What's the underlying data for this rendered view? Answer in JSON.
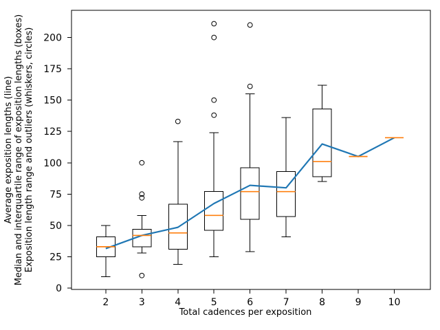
{
  "chart_data": {
    "type": "boxplot-with-line",
    "title": "",
    "xlabel": "Total cadences per exposition",
    "ylabel_lines": [
      "Average exposition lengths (line)",
      "Median and interquartile range of exposition lengths (boxes)",
      "Exposition length range and outliers (whiskers, circles)"
    ],
    "xticks": [
      2,
      3,
      4,
      5,
      6,
      7,
      8,
      9,
      10
    ],
    "yticks": [
      0,
      25,
      50,
      75,
      100,
      125,
      150,
      175,
      200
    ],
    "xlim": [
      1.05,
      11.0
    ],
    "ylim": [
      -1.1,
      221.7
    ],
    "grid": false,
    "legend": "none",
    "boxes": [
      {
        "x": 2,
        "whislo": 9,
        "q1": 25,
        "med": 33,
        "q3": 41,
        "whishi": 50,
        "fliers": []
      },
      {
        "x": 3,
        "whislo": 28,
        "q1": 33,
        "med": 42,
        "q3": 47,
        "whishi": 58,
        "fliers": [
          10,
          72,
          75,
          100
        ]
      },
      {
        "x": 4,
        "whislo": 19,
        "q1": 31,
        "med": 44,
        "q3": 67,
        "whishi": 117,
        "fliers": [
          133
        ]
      },
      {
        "x": 5,
        "whislo": 25,
        "q1": 46,
        "med": 58,
        "q3": 77,
        "whishi": 124,
        "fliers": [
          138,
          150,
          200,
          211
        ]
      },
      {
        "x": 6,
        "whislo": 29,
        "q1": 55,
        "med": 77,
        "q3": 96,
        "whishi": 155,
        "fliers": [
          161,
          210
        ]
      },
      {
        "x": 7,
        "whislo": 41,
        "q1": 57,
        "med": 77,
        "q3": 93,
        "whishi": 136,
        "fliers": []
      },
      {
        "x": 8,
        "whislo": 85,
        "q1": 89,
        "med": 101,
        "q3": 143,
        "whishi": 162,
        "fliers": []
      },
      {
        "x": 9,
        "whislo": 105,
        "q1": 105,
        "med": 105,
        "q3": 105,
        "whishi": 105,
        "fliers": []
      },
      {
        "x": 10,
        "whislo": 120,
        "q1": 120,
        "med": 120,
        "q3": 120,
        "whishi": 120,
        "fliers": []
      }
    ],
    "line_series": {
      "name": "Average exposition lengths",
      "x": [
        2,
        3,
        4,
        5,
        6,
        7,
        8,
        9,
        10
      ],
      "y": [
        31.5,
        42,
        48.5,
        67.5,
        82,
        80,
        115,
        105,
        120
      ]
    },
    "colors": {
      "line": "#1f77b4",
      "median": "#ff7f0e",
      "box": "#000000",
      "background": "#ffffff"
    }
  }
}
